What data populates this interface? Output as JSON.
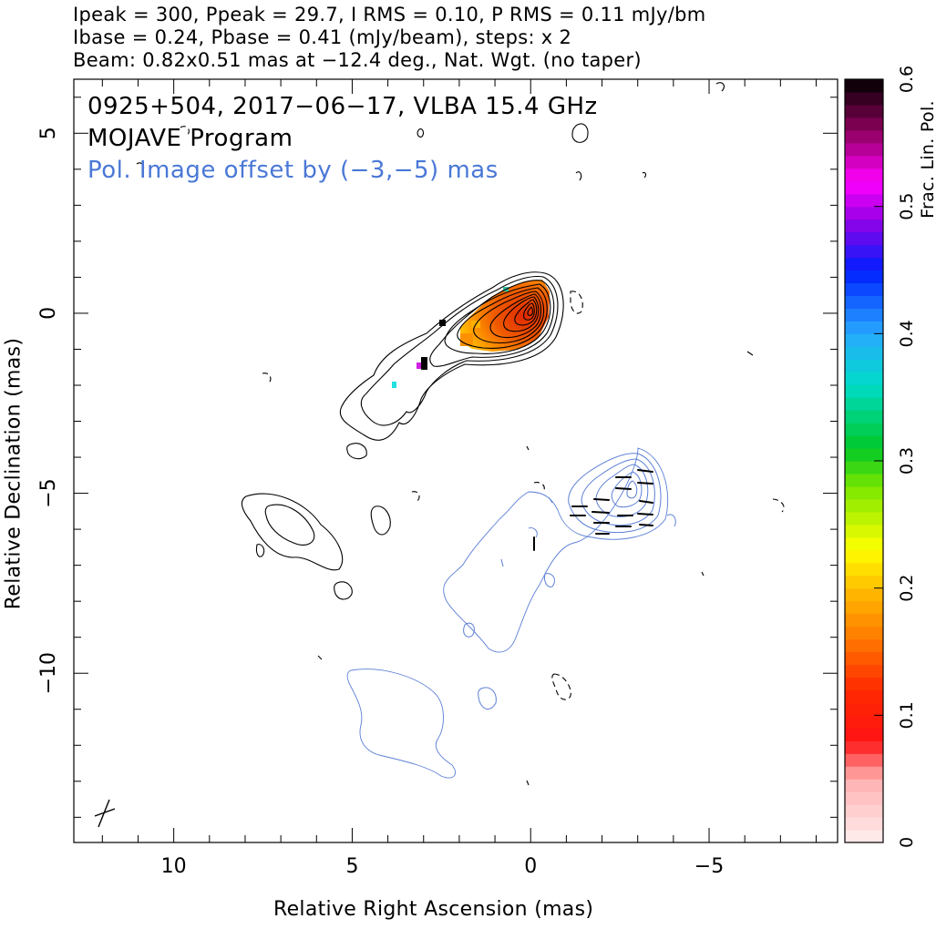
{
  "header": {
    "line1": "Ipeak = 300, Ppeak = 29.7, I RMS = 0.10, P RMS = 0.11 mJy/bm",
    "line2": "Ibase = 0.24, Pbase = 0.41 (mJy/beam), steps: x 2",
    "line3": "Beam: 0.82x0.51 mas at −12.4 deg., Nat. Wgt. (no taper)"
  },
  "annotations": {
    "source": "0925+504, 2017−06−17, VLBA 15.4 GHz",
    "program": "MOJAVE Program",
    "offset": "Pol. Image offset by (−3,−5) mas"
  },
  "colors": {
    "total_intensity_contours": "#000000",
    "polarization_contours": "#5b7fd6",
    "offset_text": "#4a78d6"
  },
  "chart_data": {
    "type": "heatmap",
    "title": "",
    "xlabel": "Relative Right Ascension (mas)",
    "ylabel": "Relative Declination (mas)",
    "xlim": [
      12.8,
      -8.6
    ],
    "ylim": [
      -14.7,
      6.5
    ],
    "xticks": [
      10,
      5,
      0,
      -5
    ],
    "yticks": [
      5,
      0,
      -5,
      -10
    ],
    "xtick_labels": [
      "10",
      "5",
      "0",
      "−5"
    ],
    "ytick_labels": [
      "5",
      "0",
      "−5",
      "−10"
    ],
    "grid": false,
    "colorbar": {
      "label": "Frac. Lin. Pol.",
      "range": [
        0,
        0.6
      ],
      "ticks": [
        0,
        0.1,
        0.2,
        0.3,
        0.4,
        0.5,
        0.6
      ],
      "tick_labels": [
        "0",
        "0.1",
        "0.2",
        "0.3",
        "0.4",
        "0.5",
        "0.6"
      ]
    },
    "intensity_peak_mJy_per_beam": 300,
    "pol_peak_mJy_per_beam": 29.7,
    "contour_base_mJy_per_beam": 0.24,
    "contour_step_factor": 2,
    "beam": {
      "major_mas": 0.82,
      "minor_mas": 0.51,
      "pa_deg": -12.4
    },
    "core_position_mas": [
      0,
      0
    ],
    "pol_offset_mas": [
      -3,
      -5
    ]
  }
}
